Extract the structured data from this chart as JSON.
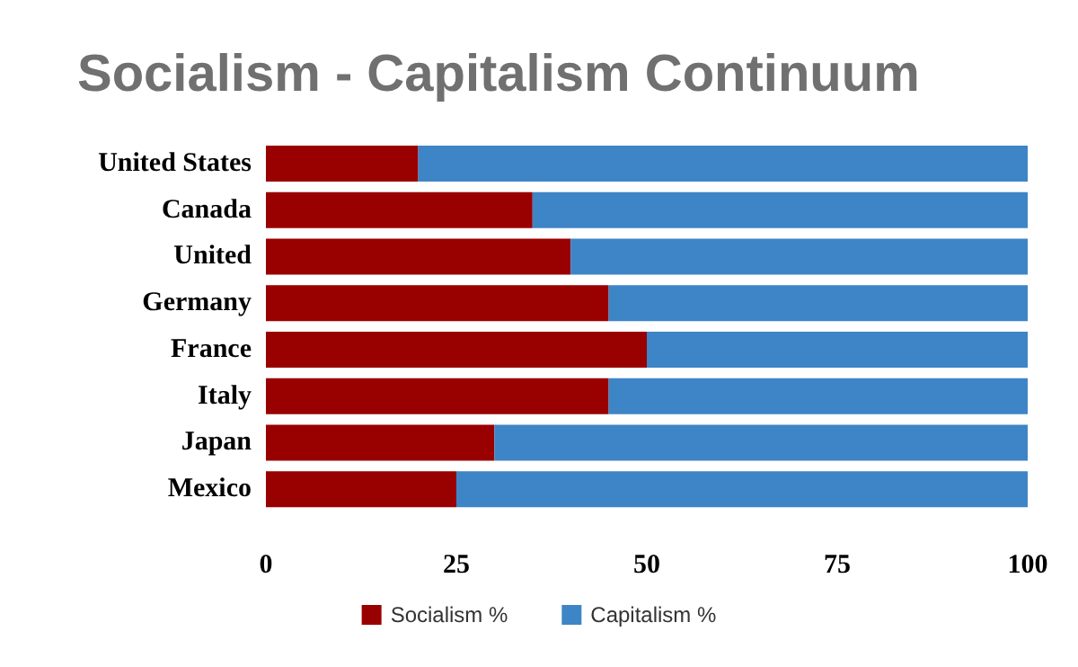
{
  "chart_data": {
    "type": "bar",
    "title": "Socialism - Capitalism Continuum",
    "orientation": "horizontal",
    "stacked": true,
    "categories": [
      "United States",
      "Canada",
      "United",
      "Germany",
      "France",
      "Italy",
      "Japan",
      "Mexico"
    ],
    "series": [
      {
        "name": "Socialism %",
        "color": "#990000",
        "values": [
          20,
          35,
          40,
          45,
          50,
          45,
          30,
          25
        ]
      },
      {
        "name": "Capitalism %",
        "color": "#3d85c6",
        "values": [
          80,
          65,
          60,
          55,
          50,
          55,
          70,
          75
        ]
      }
    ],
    "xlim": [
      0,
      100
    ],
    "xticks": [
      0,
      25,
      50,
      75,
      100
    ],
    "grid": false,
    "legend": "bottom"
  }
}
